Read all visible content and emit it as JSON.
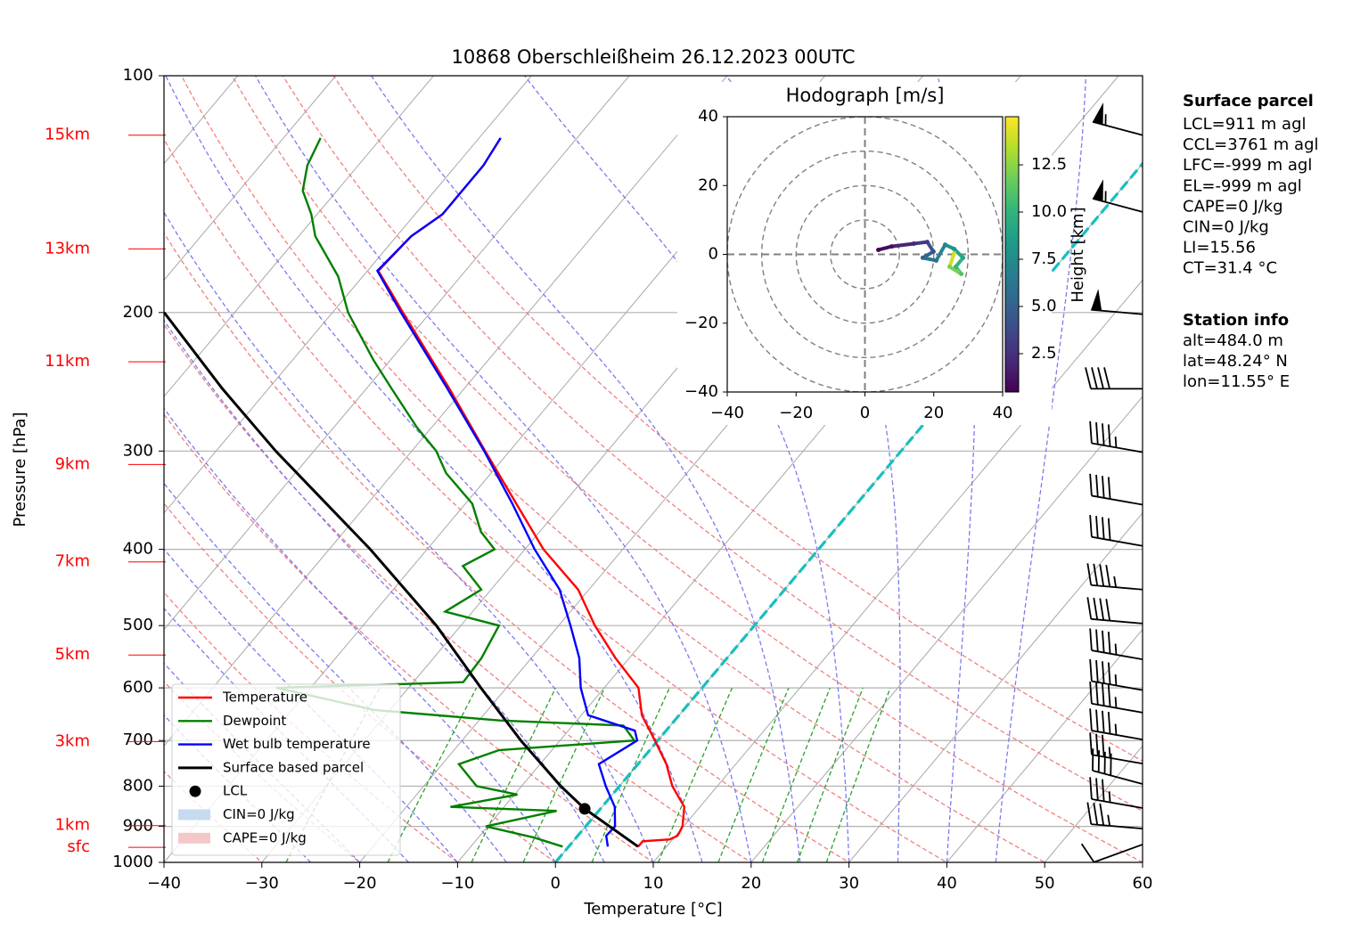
{
  "chart_data": [
    {
      "type": "skewt",
      "title": "10868 Oberschleißheim 26.12.2023 00UTC",
      "xlabel": "Temperature [°C]",
      "ylabel": "Pressure [hPa]",
      "xlim": [
        -40,
        60
      ],
      "ylim": [
        1000,
        100
      ],
      "yscale": "log",
      "grid": true,
      "legend": "lower left",
      "xticks": [
        {
          "value": -40,
          "label": "−40"
        },
        {
          "value": -30,
          "label": "−30"
        },
        {
          "value": -20,
          "label": "−20"
        },
        {
          "value": -10,
          "label": "−10"
        },
        0,
        10,
        20,
        30,
        40,
        50,
        60
      ],
      "yticks": [
        100,
        200,
        300,
        400,
        500,
        600,
        700,
        800,
        900,
        1000
      ],
      "isotherm_highlight": 0,
      "series": [
        {
          "name": "Temperature",
          "color": "#ff0000",
          "pressure": [
            955,
            940,
            935,
            925,
            900,
            850,
            800,
            750,
            700,
            650,
            600,
            550,
            500,
            450,
            400,
            350,
            300,
            250,
            200,
            177,
            160,
            150,
            130,
            120
          ],
          "values": [
            7.1,
            7.1,
            9.7,
            10.2,
            9.9,
            8.4,
            5.4,
            2.9,
            -0.3,
            -3.8,
            -6.5,
            -11.4,
            -16.3,
            -21.1,
            -28.1,
            -34.8,
            -42.5,
            -51.5,
            -62.8,
            -68.9,
            -68.5,
            -67.2,
            -67.2,
            -67.8
          ]
        },
        {
          "name": "Dewpoint",
          "color": "#008000",
          "pressure": [
            955,
            930,
            900,
            860,
            850,
            820,
            800,
            750,
            720,
            700,
            670,
            660,
            640,
            600,
            590,
            550,
            500,
            480,
            450,
            420,
            400,
            380,
            350,
            320,
            300,
            280,
            250,
            230,
            200,
            180,
            160,
            150,
            140,
            130,
            120
          ],
          "values": [
            -0.6,
            -4.3,
            -10.2,
            -4.3,
            -15.5,
            -9.7,
            -14.6,
            -18.3,
            -15.4,
            -2.4,
            -4.8,
            -17.9,
            -31.6,
            -43.5,
            -24.9,
            -25.1,
            -26.1,
            -32.8,
            -31,
            -34.9,
            -33.1,
            -36,
            -39.3,
            -44.6,
            -47.5,
            -51.5,
            -57.4,
            -61.7,
            -68.4,
            -72.5,
            -78.3,
            -80.6,
            -83.5,
            -85.2,
            -86.2
          ]
        },
        {
          "name": "Wet bulb temperature",
          "color": "#0000ff",
          "pressure": [
            955,
            925,
            900,
            850,
            800,
            750,
            700,
            680,
            650,
            600,
            550,
            500,
            450,
            400,
            350,
            300,
            250,
            200,
            177,
            160,
            150,
            130,
            120
          ],
          "values": [
            4.0,
            2.9,
            3.0,
            1.3,
            -1.4,
            -4.0,
            -2.1,
            -3.2,
            -9.3,
            -12.4,
            -15.1,
            -18.8,
            -23,
            -29,
            -35.2,
            -42.6,
            -51.7,
            -63,
            -69,
            -68.5,
            -67.2,
            -67.2,
            -67.8
          ]
        },
        {
          "name": "Surface based parcel",
          "color": "#000000",
          "pressure": [
            955,
            855,
            800,
            700,
            600,
            500,
            400,
            300,
            250,
            200
          ],
          "values": [
            7.1,
            -1.6,
            -6,
            -14,
            -22.6,
            -32.5,
            -45.8,
            -63.9,
            -74.7,
            -87.2
          ]
        }
      ],
      "lcl": {
        "name": "LCL",
        "color": "#000000",
        "pressure": 855,
        "value": -1.6
      },
      "cin": {
        "label": "CIN=0 J/kg",
        "color": "#c6dbef"
      },
      "cape": {
        "label": "CAPE=0 J/kg",
        "color": "#f4c7c9"
      },
      "height_ticks": [
        {
          "value": 119,
          "label": "15km"
        },
        {
          "value": 166,
          "label": "13km"
        },
        {
          "value": 231,
          "label": "11km"
        },
        {
          "value": 312,
          "label": "9km"
        },
        {
          "value": 415,
          "label": "7km"
        },
        {
          "value": 545,
          "label": "5km"
        },
        {
          "value": 702,
          "label": "3km"
        },
        {
          "value": 898,
          "label": "1km"
        },
        {
          "value": 957,
          "label": "sfc"
        }
      ],
      "wind": {
        "pressure": [
          119,
          149,
          201,
          250,
          301,
          351,
          396,
          450,
          497,
          552,
          604,
          645,
          698,
          749,
          795,
          853,
          906,
          949
        ],
        "speed": [
          55,
          55,
          50,
          40,
          45,
          40,
          40,
          45,
          40,
          45,
          45,
          45,
          45,
          35,
          40,
          35,
          35,
          10
        ],
        "direction": [
          285,
          285,
          275,
          270,
          280,
          280,
          280,
          275,
          275,
          280,
          280,
          280,
          280,
          280,
          285,
          280,
          275,
          250
        ]
      }
    },
    {
      "type": "hodograph",
      "title": "Hodograph [m/s]",
      "xlim": [
        -40,
        40
      ],
      "ylim": [
        -40,
        40
      ],
      "xticks": [
        {
          "value": -40,
          "label": "−40"
        },
        {
          "value": -20,
          "label": "−20"
        },
        0,
        20,
        40
      ],
      "yticks": [
        {
          "value": -40,
          "label": "−40"
        },
        {
          "value": -20,
          "label": "−20"
        },
        0,
        20,
        40
      ],
      "u": [
        3.9,
        7.8,
        14.2,
        18.1,
        19.9,
        16.8,
        20.7,
        23.3,
        25.9,
        28.5,
        26.4,
        28,
        24.6,
        25.9
      ],
      "v": [
        1.3,
        2.3,
        3.1,
        3.6,
        0.8,
        -1,
        -1.8,
        2.8,
        1.6,
        -1,
        -3.6,
        -5.7,
        -3.6,
        0.3
      ],
      "height": [
        0.5,
        1,
        2,
        3,
        4,
        5,
        6,
        7,
        8,
        9,
        10,
        11,
        12,
        14
      ],
      "colormap": "viridis",
      "clim": [
        0.47,
        15.05
      ],
      "colorbar_label": "Height [km]",
      "cticks": [
        2.5,
        {
          "value": 5,
          "label": "5.0"
        },
        7.5,
        {
          "value": 10,
          "label": "10.0"
        },
        12.5
      ]
    }
  ],
  "panel": {
    "surface_title": "Surface parcel",
    "surface": [
      "LCL=911 m agl",
      "CCL=3761 m agl",
      "LFC=-999 m agl",
      "EL=-999 m agl",
      "CAPE=0 J/kg",
      "CIN=0 J/kg",
      "LI=15.56",
      "CT=31.4 °C"
    ],
    "station_title": "Station info",
    "station": [
      "alt=484.0 m",
      "lat=48.24° N",
      "lon=11.55° E"
    ]
  }
}
